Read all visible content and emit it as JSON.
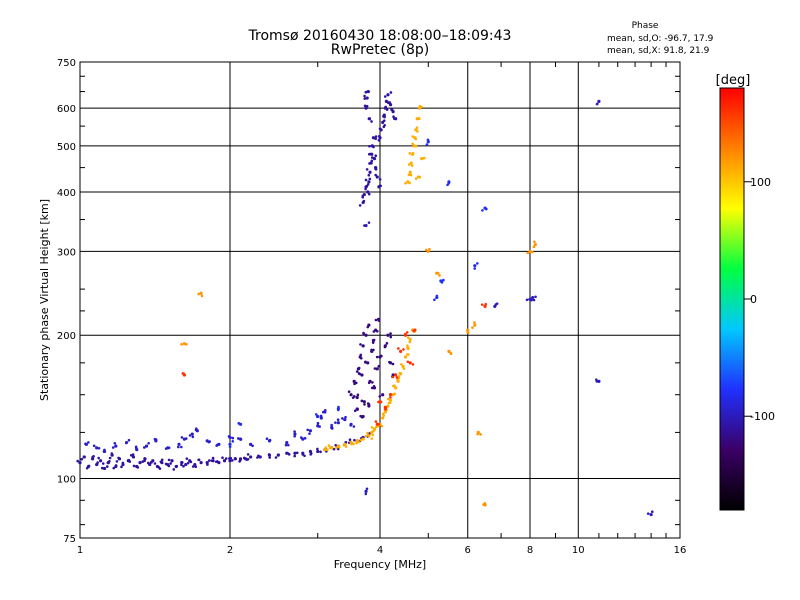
{
  "chart_data": {
    "type": "scatter",
    "title": "Tromsø 20160430 18:08:00–18:09:43",
    "subtitle": "RwPretec (8p)",
    "xlabel": "Frequency [MHz]",
    "ylabel": "Stationary phase Virtual Height [km]",
    "x_scale": "log",
    "y_scale": "log",
    "xlim": [
      1,
      16
    ],
    "ylim": [
      75,
      750
    ],
    "x_ticks": [
      1,
      2,
      4,
      6,
      8,
      10,
      16
    ],
    "y_ticks": [
      75,
      100,
      200,
      300,
      400,
      500,
      600,
      750
    ],
    "grid": true,
    "phase_box": {
      "title": "Phase",
      "line_o": "mean, sd,O: -96.7, 17.9",
      "line_x": "mean, sd,X:  91.8, 21.9"
    },
    "colorbar": {
      "label": "[deg]",
      "range": [
        -180,
        180
      ],
      "ticks": [
        100,
        0,
        -100
      ],
      "colors": [
        "#000000",
        "#3a0066",
        "#2030ff",
        "#00c8ff",
        "#00ff40",
        "#ffff00",
        "#ff8000",
        "#ff0000"
      ]
    },
    "series": [
      {
        "phase_deg": -110,
        "points": [
          [
            1.0,
            108
          ],
          [
            1.02,
            111
          ],
          [
            1.04,
            106
          ],
          [
            1.06,
            110
          ],
          [
            1.08,
            107
          ],
          [
            1.1,
            109
          ],
          [
            1.12,
            105
          ],
          [
            1.14,
            108
          ],
          [
            1.16,
            112
          ],
          [
            1.18,
            106
          ],
          [
            1.2,
            110
          ],
          [
            1.22,
            107
          ],
          [
            1.25,
            109
          ],
          [
            1.28,
            111
          ],
          [
            1.3,
            106
          ],
          [
            1.32,
            108
          ],
          [
            1.35,
            110
          ],
          [
            1.38,
            107
          ],
          [
            1.4,
            109
          ],
          [
            1.43,
            106
          ],
          [
            1.46,
            108
          ],
          [
            1.5,
            107
          ],
          [
            1.53,
            109
          ],
          [
            1.56,
            106
          ],
          [
            1.6,
            108
          ],
          [
            1.63,
            107
          ],
          [
            1.66,
            109
          ],
          [
            1.7,
            107
          ],
          [
            1.75,
            108
          ],
          [
            1.8,
            108
          ],
          [
            1.85,
            109
          ],
          [
            1.9,
            108
          ],
          [
            1.95,
            109
          ],
          [
            2.0,
            109
          ],
          [
            2.05,
            110
          ],
          [
            2.1,
            110
          ],
          [
            2.15,
            110
          ],
          [
            2.2,
            111
          ],
          [
            2.3,
            111
          ],
          [
            2.4,
            112
          ],
          [
            2.5,
            112
          ],
          [
            2.6,
            113
          ],
          [
            2.7,
            113
          ],
          [
            2.8,
            113
          ],
          [
            2.9,
            114
          ],
          [
            3.0,
            114
          ],
          [
            3.1,
            115
          ],
          [
            3.2,
            116
          ],
          [
            3.3,
            117
          ],
          [
            3.4,
            118
          ],
          [
            3.5,
            119
          ],
          [
            3.6,
            120
          ],
          [
            3.7,
            122
          ],
          [
            3.8,
            124
          ]
        ]
      },
      {
        "phase_deg": -95,
        "points": [
          [
            1.03,
            118
          ],
          [
            1.08,
            116
          ],
          [
            1.12,
            114
          ],
          [
            1.18,
            117
          ],
          [
            1.24,
            119
          ],
          [
            1.3,
            115
          ],
          [
            1.36,
            117
          ],
          [
            1.42,
            120
          ],
          [
            1.5,
            116
          ],
          [
            1.58,
            118
          ],
          [
            1.62,
            121
          ],
          [
            1.68,
            124
          ],
          [
            1.72,
            126
          ],
          [
            1.8,
            120
          ],
          [
            1.9,
            118
          ],
          [
            2.0,
            122
          ],
          [
            2.1,
            121
          ],
          [
            2.2,
            118
          ],
          [
            2.4,
            120
          ],
          [
            2.6,
            119
          ],
          [
            2.7,
            124
          ],
          [
            2.8,
            121
          ],
          [
            2.9,
            126
          ],
          [
            3.0,
            129
          ],
          [
            3.05,
            134
          ],
          [
            3.1,
            138
          ],
          [
            3.2,
            128
          ],
          [
            3.3,
            131
          ],
          [
            3.4,
            133
          ],
          [
            3.5,
            130
          ]
        ]
      },
      {
        "phase_deg": -120,
        "points": [
          [
            3.5,
            150
          ],
          [
            3.55,
            160
          ],
          [
            3.6,
            148
          ],
          [
            3.62,
            170
          ],
          [
            3.65,
            180
          ],
          [
            3.68,
            165
          ],
          [
            3.7,
            190
          ],
          [
            3.72,
            145
          ],
          [
            3.75,
            200
          ],
          [
            3.78,
            175
          ],
          [
            3.8,
            210
          ],
          [
            3.82,
            160
          ],
          [
            3.85,
            185
          ],
          [
            3.88,
            195
          ],
          [
            3.9,
            155
          ],
          [
            3.92,
            205
          ],
          [
            3.95,
            170
          ],
          [
            3.98,
            215
          ],
          [
            4.0,
            180
          ],
          [
            4.05,
            150
          ],
          [
            4.1,
            190
          ],
          [
            4.15,
            200
          ],
          [
            4.2,
            175
          ],
          [
            4.25,
            165
          ],
          [
            3.6,
            140
          ],
          [
            3.7,
            135
          ],
          [
            3.8,
            142
          ]
        ]
      },
      {
        "phase_deg": -110,
        "points": [
          [
            3.7,
            380
          ],
          [
            3.72,
            395
          ],
          [
            3.75,
            410
          ],
          [
            3.78,
            400
          ],
          [
            3.8,
            420
          ],
          [
            3.82,
            440
          ],
          [
            3.84,
            460
          ],
          [
            3.85,
            480
          ],
          [
            3.86,
            500
          ],
          [
            3.88,
            520
          ],
          [
            3.9,
            470
          ],
          [
            3.92,
            450
          ],
          [
            3.95,
            430
          ],
          [
            3.98,
            410
          ],
          [
            4.0,
            520
          ],
          [
            4.02,
            540
          ],
          [
            4.05,
            560
          ],
          [
            4.08,
            580
          ],
          [
            4.1,
            600
          ],
          [
            4.12,
            620
          ],
          [
            4.15,
            640
          ],
          [
            4.2,
            610
          ],
          [
            4.25,
            590
          ],
          [
            4.3,
            570
          ],
          [
            3.75,
            600
          ],
          [
            3.77,
            630
          ],
          [
            3.79,
            650
          ],
          [
            3.81,
            570
          ]
        ]
      },
      {
        "phase_deg": 110,
        "points": [
          [
            3.1,
            115
          ],
          [
            3.2,
            116
          ],
          [
            3.3,
            117
          ],
          [
            3.4,
            118
          ],
          [
            3.5,
            119
          ],
          [
            3.6,
            120
          ],
          [
            3.7,
            121
          ],
          [
            3.8,
            123
          ],
          [
            3.85,
            125
          ],
          [
            3.9,
            127
          ],
          [
            4.0,
            130
          ],
          [
            4.05,
            134
          ],
          [
            4.1,
            138
          ],
          [
            4.15,
            142
          ],
          [
            4.2,
            146
          ],
          [
            4.25,
            150
          ],
          [
            4.3,
            155
          ],
          [
            4.35,
            160
          ],
          [
            4.4,
            166
          ],
          [
            4.45,
            172
          ],
          [
            4.5,
            180
          ],
          [
            4.55,
            188
          ],
          [
            4.6,
            196
          ],
          [
            4.65,
            205
          ]
        ]
      },
      {
        "phase_deg": 110,
        "points": [
          [
            4.55,
            420
          ],
          [
            4.6,
            440
          ],
          [
            4.62,
            460
          ],
          [
            4.65,
            480
          ],
          [
            4.68,
            500
          ],
          [
            4.7,
            520
          ],
          [
            4.72,
            540
          ],
          [
            4.75,
            570
          ],
          [
            4.8,
            600
          ],
          [
            4.78,
            430
          ],
          [
            4.85,
            470
          ]
        ]
      },
      {
        "phase_deg": 160,
        "points": [
          [
            4.1,
            140
          ],
          [
            4.2,
            150
          ],
          [
            4.3,
            165
          ],
          [
            4.4,
            185
          ],
          [
            4.5,
            200
          ],
          [
            4.6,
            175
          ],
          [
            4.7,
            205
          ],
          [
            3.95,
            130
          ],
          [
            4.0,
            145
          ],
          [
            1.62,
            165
          ],
          [
            6.5,
            230
          ]
        ]
      },
      {
        "phase_deg": -80,
        "points": [
          [
            5.0,
            510
          ],
          [
            5.5,
            420
          ],
          [
            6.2,
            280
          ],
          [
            6.5,
            370
          ],
          [
            5.3,
            260
          ],
          [
            5.2,
            240
          ],
          [
            2.1,
            130
          ],
          [
            2.0,
            118
          ],
          [
            3.0,
            135
          ],
          [
            3.3,
            140
          ]
        ]
      },
      {
        "phase_deg": 120,
        "points": [
          [
            1.75,
            245
          ],
          [
            1.62,
            192
          ],
          [
            5.0,
            300
          ],
          [
            5.2,
            270
          ],
          [
            6.2,
            210
          ],
          [
            6.3,
            125
          ],
          [
            6.5,
            88
          ],
          [
            8.0,
            300
          ],
          [
            8.2,
            310
          ],
          [
            6.0,
            205
          ],
          [
            5.5,
            185
          ]
        ]
      },
      {
        "phase_deg": -100,
        "points": [
          [
            3.75,
            340
          ],
          [
            3.75,
            94
          ],
          [
            8.0,
            238
          ],
          [
            11.0,
            620
          ],
          [
            11.0,
            160
          ],
          [
            14.0,
            84
          ],
          [
            6.8,
            230
          ],
          [
            8.1,
            240
          ]
        ]
      }
    ]
  }
}
